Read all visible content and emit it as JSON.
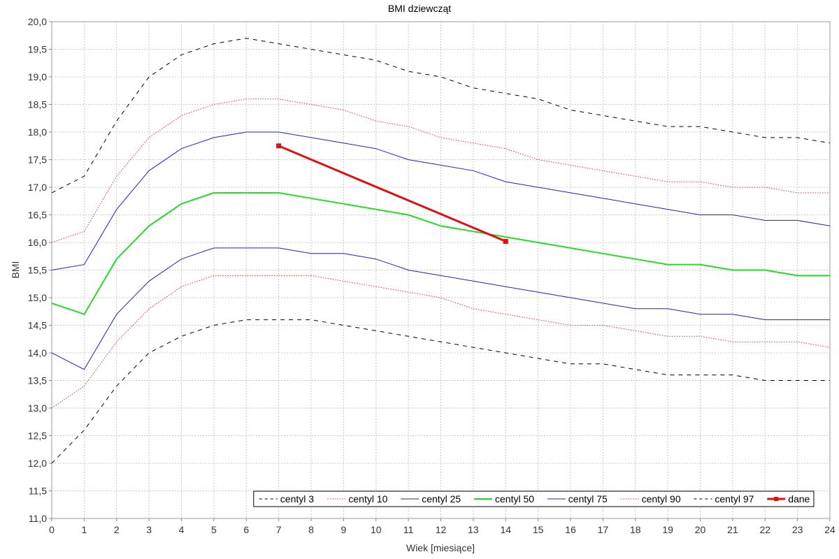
{
  "chart_data": {
    "type": "line",
    "title": "BMI dziewcząt",
    "xlabel": "Wiek [miesiące]",
    "ylabel": "BMI",
    "xlim": [
      0,
      24
    ],
    "ylim": [
      11.0,
      20.0
    ],
    "x_ticks": [
      "0",
      "1",
      "2",
      "3",
      "4",
      "5",
      "6",
      "7",
      "8",
      "9",
      "10",
      "11",
      "12",
      "13",
      "14",
      "15",
      "16",
      "17",
      "18",
      "19",
      "20",
      "21",
      "22",
      "23",
      "24"
    ],
    "y_ticks": [
      "11,0",
      "11,5",
      "12,0",
      "12,5",
      "13,0",
      "13,5",
      "14,0",
      "14,5",
      "15,0",
      "15,5",
      "16,0",
      "16,5",
      "17,0",
      "17,5",
      "18,0",
      "18,5",
      "19,0",
      "19,5",
      "20,0"
    ],
    "grid": true,
    "legend_position": "bottom-right",
    "x": [
      0,
      1,
      2,
      3,
      4,
      5,
      6,
      7,
      8,
      9,
      10,
      11,
      12,
      13,
      14,
      15,
      16,
      17,
      18,
      19,
      20,
      21,
      22,
      23,
      24
    ],
    "series": [
      {
        "name": "centyl 3",
        "color": "#000000",
        "style": "dashed",
        "width": 1,
        "values": [
          12.0,
          12.6,
          13.4,
          14.0,
          14.3,
          14.5,
          14.6,
          14.6,
          14.6,
          14.5,
          14.4,
          14.3,
          14.2,
          14.1,
          14.0,
          13.9,
          13.8,
          13.8,
          13.7,
          13.6,
          13.6,
          13.6,
          13.5,
          13.5,
          13.5
        ]
      },
      {
        "name": "centyl 10",
        "color": "#e03030",
        "style": "dotted",
        "width": 1,
        "values": [
          13.0,
          13.4,
          14.2,
          14.8,
          15.2,
          15.4,
          15.4,
          15.4,
          15.4,
          15.3,
          15.2,
          15.1,
          15.0,
          14.8,
          14.7,
          14.6,
          14.5,
          14.5,
          14.4,
          14.3,
          14.3,
          14.2,
          14.2,
          14.2,
          14.1
        ]
      },
      {
        "name": "centyl 25",
        "color": "#2222bb",
        "style": "solid",
        "width": 1,
        "values": [
          14.0,
          13.7,
          14.7,
          15.3,
          15.7,
          15.9,
          15.9,
          15.9,
          15.8,
          15.8,
          15.7,
          15.5,
          15.4,
          15.3,
          15.2,
          15.1,
          15.0,
          14.9,
          14.8,
          14.8,
          14.7,
          14.7,
          14.6,
          14.6,
          14.6
        ]
      },
      {
        "name": "centyl 50",
        "color": "#22dd22",
        "style": "solid",
        "width": 2,
        "values": [
          14.9,
          14.7,
          15.7,
          16.3,
          16.7,
          16.9,
          16.9,
          16.9,
          16.8,
          16.7,
          16.6,
          16.5,
          16.3,
          16.2,
          16.1,
          16.0,
          15.9,
          15.8,
          15.7,
          15.6,
          15.6,
          15.5,
          15.5,
          15.4,
          15.4
        ]
      },
      {
        "name": "centyl 75",
        "color": "#2222bb",
        "style": "solid",
        "width": 1,
        "values": [
          15.5,
          15.6,
          16.6,
          17.3,
          17.7,
          17.9,
          18.0,
          18.0,
          17.9,
          17.8,
          17.7,
          17.5,
          17.4,
          17.3,
          17.1,
          17.0,
          16.9,
          16.8,
          16.7,
          16.6,
          16.5,
          16.5,
          16.4,
          16.4,
          16.3
        ]
      },
      {
        "name": "centyl 90",
        "color": "#e03030",
        "style": "dotted",
        "width": 1,
        "values": [
          16.0,
          16.2,
          17.2,
          17.9,
          18.3,
          18.5,
          18.6,
          18.6,
          18.5,
          18.4,
          18.2,
          18.1,
          17.9,
          17.8,
          17.7,
          17.5,
          17.4,
          17.3,
          17.2,
          17.1,
          17.1,
          17.0,
          17.0,
          16.9,
          16.9
        ]
      },
      {
        "name": "centyl 97",
        "color": "#000000",
        "style": "dashed",
        "width": 1,
        "values": [
          16.9,
          17.2,
          18.2,
          19.0,
          19.4,
          19.6,
          19.7,
          19.6,
          19.5,
          19.4,
          19.3,
          19.1,
          19.0,
          18.8,
          18.7,
          18.6,
          18.4,
          18.3,
          18.2,
          18.1,
          18.1,
          18.0,
          17.9,
          17.9,
          17.8
        ]
      }
    ],
    "data_series": {
      "name": "dane",
      "color": "#dd1111",
      "width": 3,
      "points": [
        {
          "x": 7,
          "y": 17.75
        },
        {
          "x": 14,
          "y": 16.02
        }
      ]
    }
  }
}
